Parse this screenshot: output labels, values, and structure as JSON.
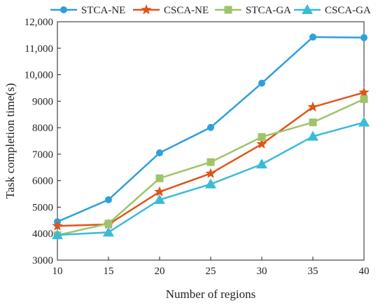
{
  "chart_data": {
    "type": "line",
    "x": [
      10,
      15,
      20,
      25,
      30,
      35,
      40
    ],
    "xlabel": "Number of regions",
    "ylabel": "Task completion time(s)",
    "xlim": [
      10,
      40
    ],
    "ylim": [
      3000,
      12000
    ],
    "xticks": [
      "10",
      "15",
      "20",
      "25",
      "30",
      "35",
      "40"
    ],
    "yticks": [
      "3000",
      "4000",
      "5000",
      "6000",
      "7000",
      "8000",
      "9000",
      "10,000",
      "11,000",
      "12,000"
    ],
    "grid": false,
    "legend_position": "top",
    "series": [
      {
        "name": "STCA-NE",
        "marker": "circle",
        "color": "#2e9fdc",
        "values": [
          4450,
          5280,
          7050,
          8010,
          9680,
          11420,
          11400
        ]
      },
      {
        "name": "CSCA-NE",
        "marker": "star",
        "color": "#e0541a",
        "values": [
          4290,
          4350,
          5580,
          6270,
          7380,
          8780,
          9330
        ]
      },
      {
        "name": "STCA-GA",
        "marker": "square",
        "color": "#9ec46a",
        "values": [
          3940,
          4380,
          6090,
          6700,
          7650,
          8200,
          9080
        ]
      },
      {
        "name": "CSCA-GA",
        "marker": "triangle",
        "color": "#3bbbd6",
        "values": [
          3950,
          4050,
          5280,
          5870,
          6620,
          7670,
          8200
        ]
      }
    ]
  }
}
